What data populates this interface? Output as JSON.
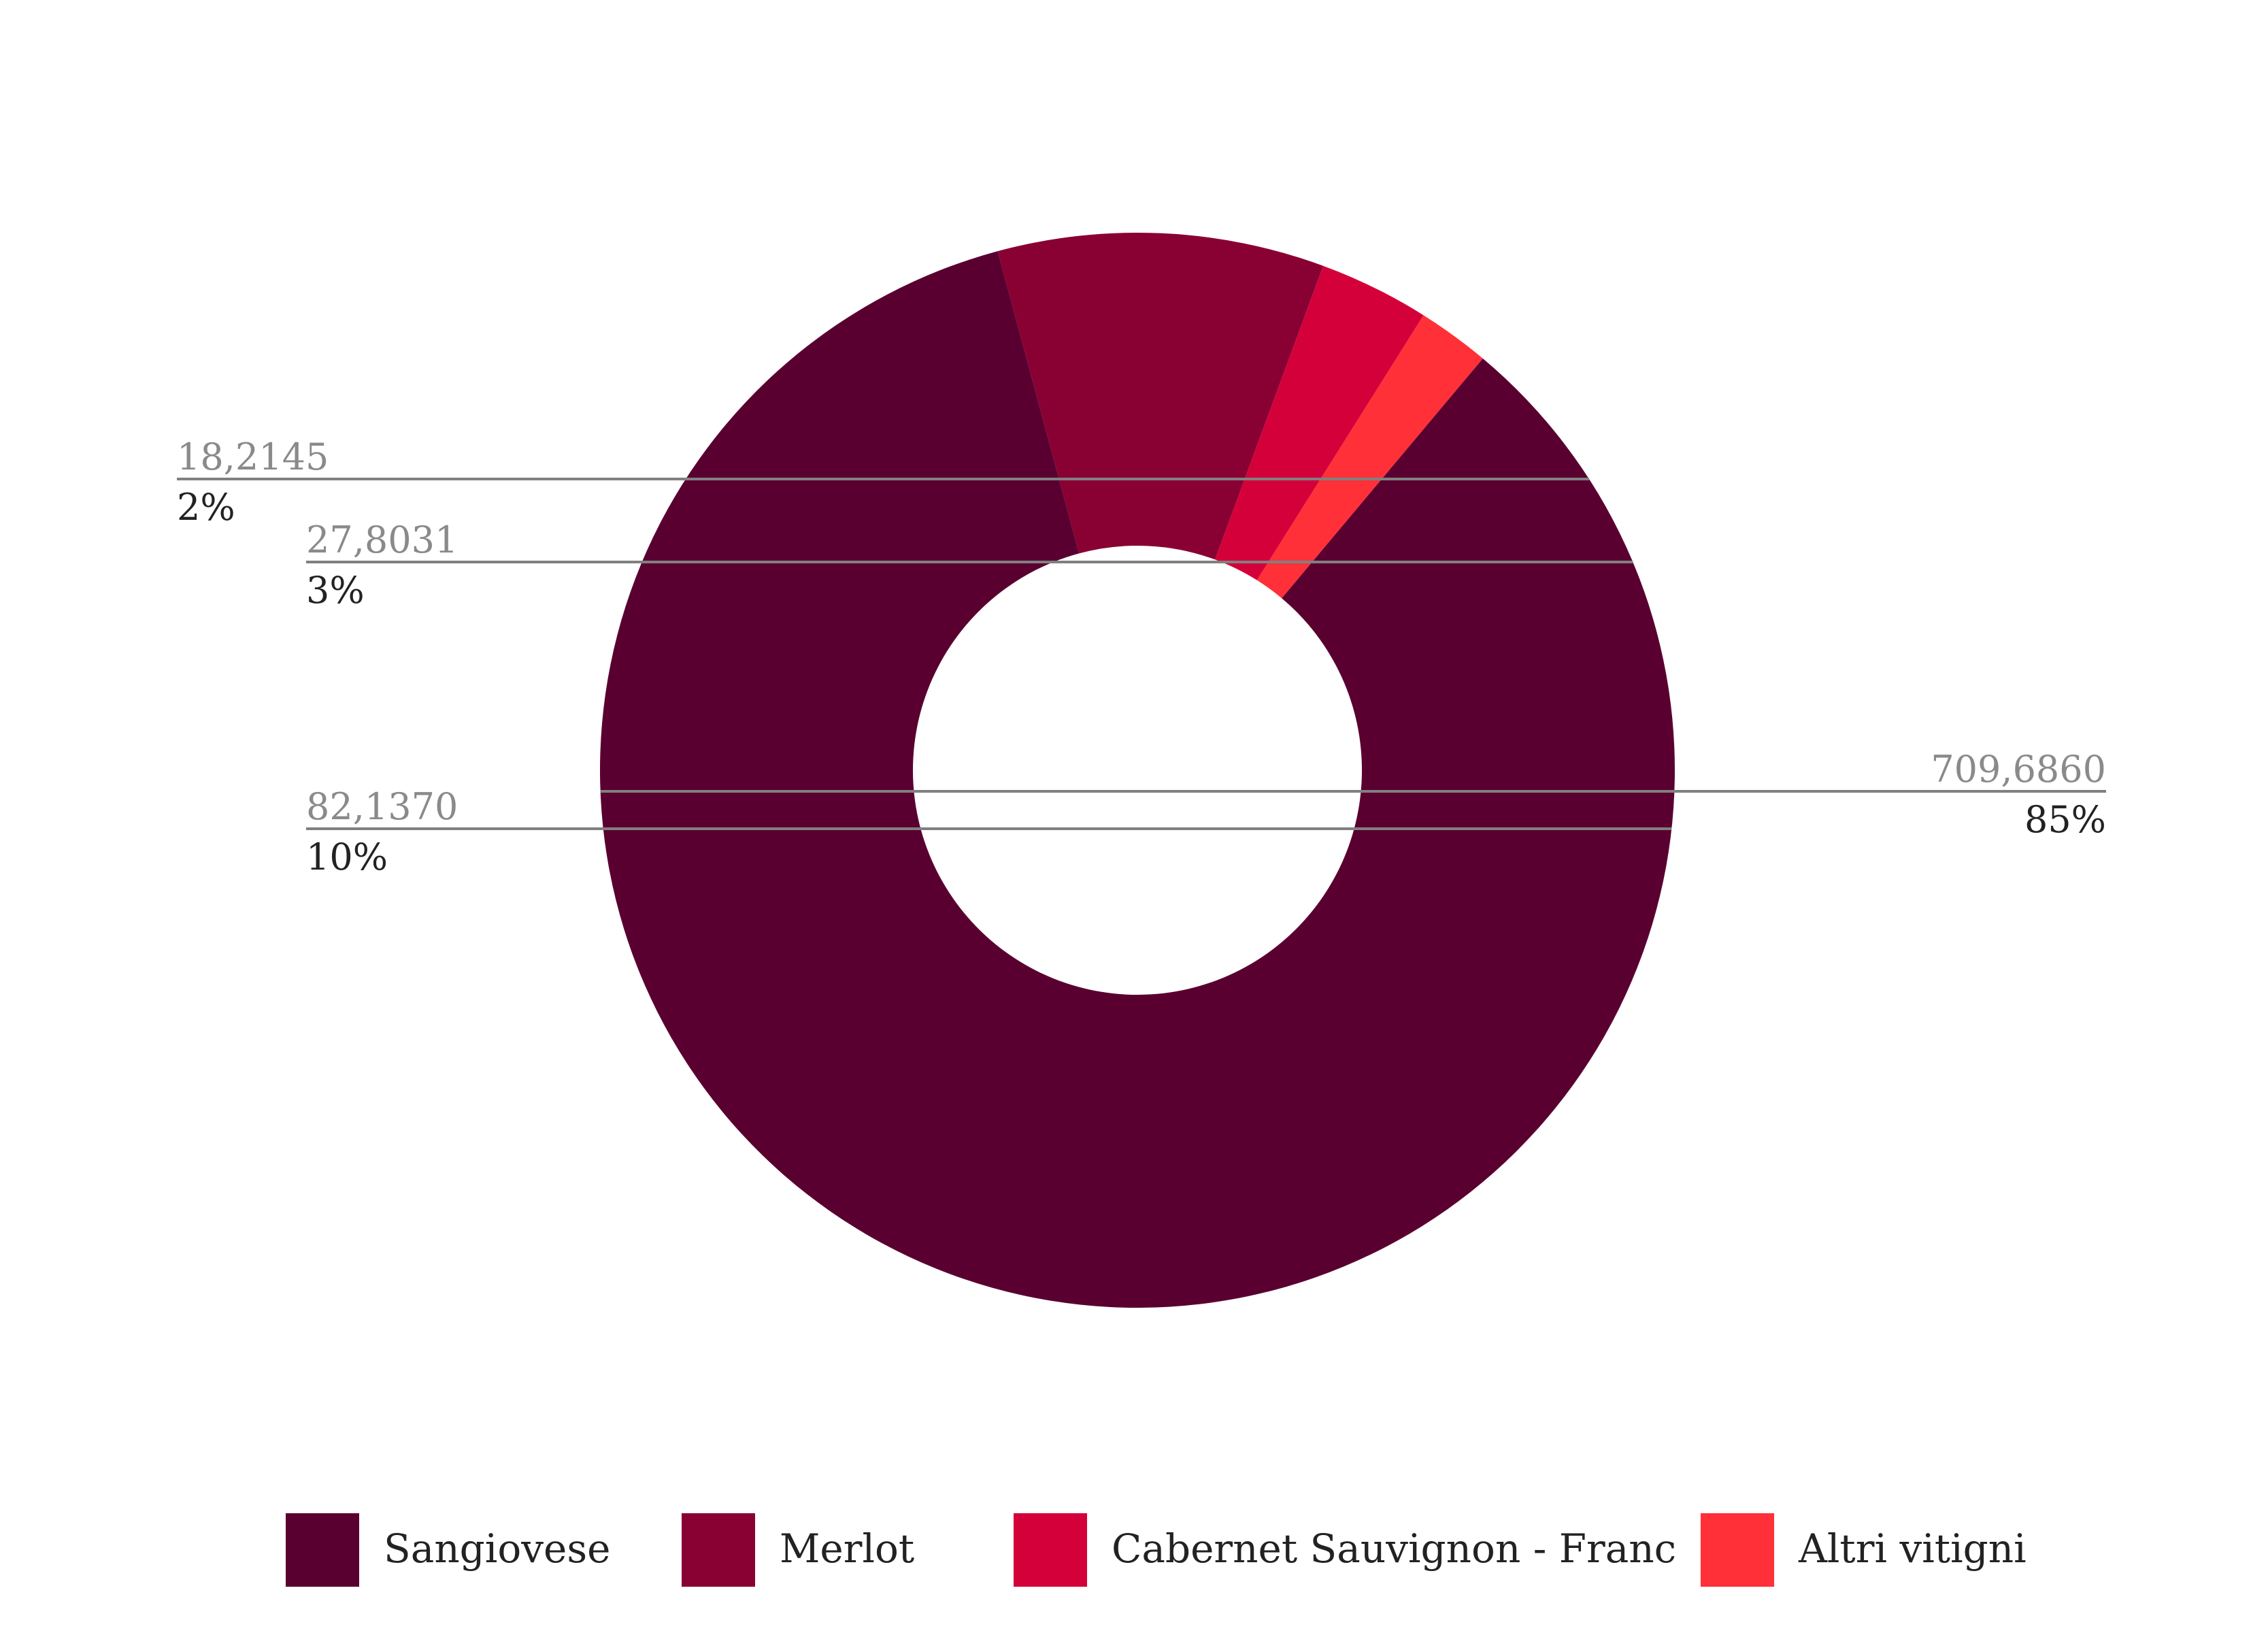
{
  "chart_data": {
    "type": "pie",
    "donut": true,
    "legend_position": "bottom",
    "slices": [
      {
        "label": "Sangiovese",
        "value": 709.686,
        "value_label": "709,6860",
        "percent_label": "85%",
        "color": "#5a0030"
      },
      {
        "label": "Merlot",
        "value": 82.137,
        "value_label": "82,1370",
        "percent_label": "10%",
        "color": "#890033"
      },
      {
        "label": "Cabernet Sauvignon - Franc",
        "value": 27.8031,
        "value_label": "27,8031",
        "percent_label": "3%",
        "color": "#d4003a"
      },
      {
        "label": "Altri vitigni",
        "value": 18.2145,
        "value_label": "18,2145",
        "percent_label": "2%",
        "color": "#ff3038"
      }
    ]
  }
}
